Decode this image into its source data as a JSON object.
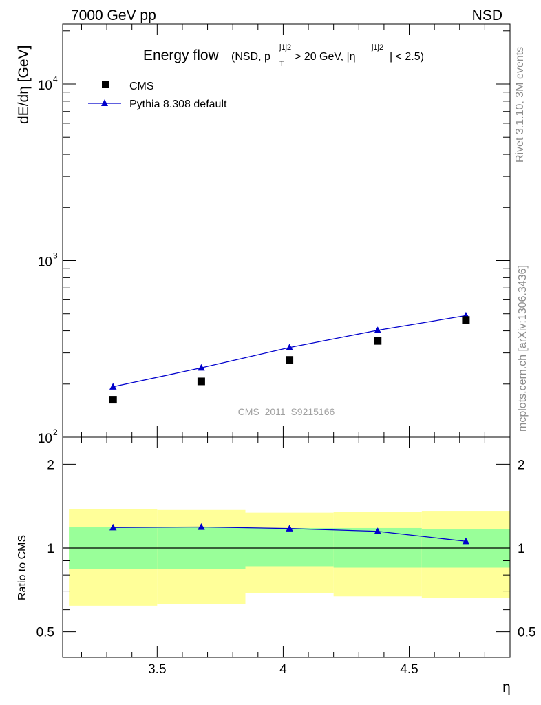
{
  "header": {
    "left_label": "7000 GeV pp",
    "right_label": "NSD"
  },
  "sidebar": {
    "rivet_label": "Rivet 3.1.10,  3M events",
    "mcplots_label": "mcplots.cern.ch [arXiv:1306.3436]"
  },
  "watermark": "CMS_2011_S9215166",
  "title": {
    "main": "Energy flow",
    "cut_open": "(NSD, p",
    "cut_pt_sup": "j1j2",
    "cut_pt_sub": "T",
    "cut_mid": " > 20 GeV, |η",
    "cut_eta_sup": "j1j2",
    "cut_close": "| < 2.5)"
  },
  "colors": {
    "mc_line": "#0000cc",
    "band_inner": "#99ff99",
    "band_outer": "#ffff99",
    "watermark": "#a0a0a0"
  },
  "chart_data": [
    {
      "type": "line",
      "panel": "main",
      "ylabel": "dE/dη [GeV]",
      "yscale": "log",
      "ylim": [
        100,
        20000
      ],
      "xlim": [
        3.125,
        4.9
      ],
      "x_ticks": [
        3.5,
        4,
        4.5
      ],
      "y_tick_labels": [
        {
          "value": 100,
          "base": "10",
          "exp": "2"
        },
        {
          "value": 1000,
          "base": "10",
          "exp": "3"
        },
        {
          "value": 10000,
          "base": "10",
          "exp": "4"
        }
      ],
      "legend": {
        "position": "top-left",
        "entries": [
          {
            "label": "CMS",
            "marker": "square",
            "color": "#000000"
          },
          {
            "label": "Pythia 8.308 default",
            "marker": "triangle",
            "color": "#0000cc"
          }
        ]
      },
      "bins": [
        [
          3.15,
          3.5
        ],
        [
          3.5,
          3.85
        ],
        [
          3.85,
          4.2
        ],
        [
          4.2,
          4.55
        ],
        [
          4.55,
          4.9
        ]
      ],
      "series": [
        {
          "name": "CMS",
          "style": "markers",
          "marker": "square",
          "x": [
            3.325,
            3.675,
            4.025,
            4.375,
            4.725
          ],
          "y": [
            163,
            207,
            274,
            351,
            461
          ]
        },
        {
          "name": "Pythia 8.308 default",
          "style": "line+markers",
          "marker": "triangle",
          "x": [
            3.325,
            3.675,
            4.025,
            4.375,
            4.725
          ],
          "y": [
            193,
            247,
            322,
            403,
            488
          ]
        }
      ]
    },
    {
      "type": "line",
      "panel": "ratio",
      "xlabel": "η",
      "ylabel": "Ratio to CMS",
      "ylim": [
        0.4,
        2.4
      ],
      "xlim": [
        3.125,
        4.9
      ],
      "x_ticks": [
        3.5,
        4,
        4.5
      ],
      "x_tick_labels": [
        "3.5",
        "4",
        "4.5"
      ],
      "y_ticks": [
        0.5,
        1,
        2
      ],
      "y_tick_labels": [
        "0.5",
        "1",
        "2"
      ],
      "reference_line": 1,
      "uncertainty_bands": [
        {
          "x": [
            3.15,
            3.5
          ],
          "inner": [
            0.84,
            1.19
          ],
          "outer": [
            0.62,
            1.38
          ]
        },
        {
          "x": [
            3.5,
            3.85
          ],
          "inner": [
            0.84,
            1.19
          ],
          "outer": [
            0.63,
            1.37
          ]
        },
        {
          "x": [
            3.85,
            4.2
          ],
          "inner": [
            0.86,
            1.18
          ],
          "outer": [
            0.69,
            1.34
          ]
        },
        {
          "x": [
            4.2,
            4.55
          ],
          "inner": [
            0.85,
            1.18
          ],
          "outer": [
            0.67,
            1.35
          ]
        },
        {
          "x": [
            4.55,
            4.9
          ],
          "inner": [
            0.85,
            1.17
          ],
          "outer": [
            0.66,
            1.36
          ]
        }
      ],
      "series": [
        {
          "name": "Pythia 8.308 default",
          "style": "line+markers",
          "marker": "triangle",
          "x": [
            3.325,
            3.675,
            4.025,
            4.375,
            4.725
          ],
          "y": [
            1.185,
            1.19,
            1.175,
            1.148,
            1.057
          ]
        }
      ]
    }
  ]
}
